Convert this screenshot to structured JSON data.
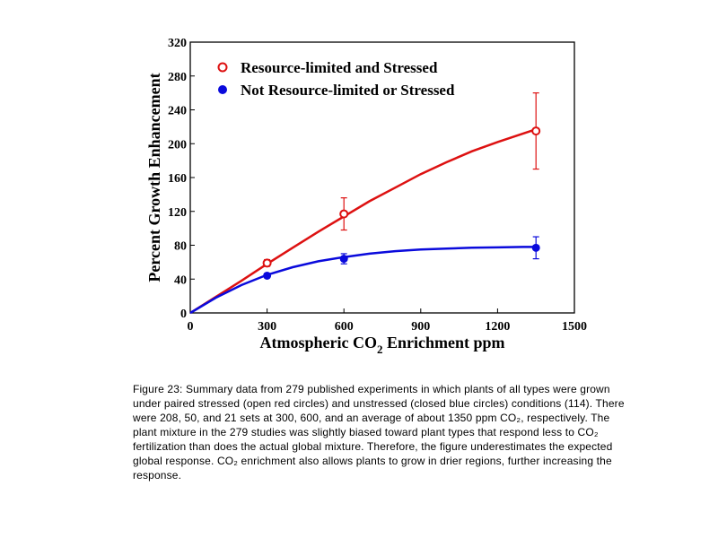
{
  "chart_data": {
    "type": "scatter",
    "xlabel_main": "Atmospheric CO",
    "xlabel_sub": "2",
    "xlabel_rest": " Enrichment ppm",
    "ylabel": "Percent Growth Enhancement",
    "xlim": [
      0,
      1500
    ],
    "ylim": [
      0,
      320
    ],
    "x_ticks": [
      0,
      300,
      600,
      900,
      1200,
      1500
    ],
    "y_ticks": [
      0,
      40,
      80,
      120,
      160,
      200,
      240,
      280,
      320
    ],
    "grid": false,
    "legend_position": "top-left",
    "series": [
      {
        "name": "Resource-limited and Stressed",
        "color": "#dd1111",
        "marker": "open-circle",
        "points": [
          {
            "x": 300,
            "y": 59,
            "err": 4
          },
          {
            "x": 600,
            "y": 117,
            "err": 19
          },
          {
            "x": 1350,
            "y": 215,
            "err": 45
          }
        ],
        "curve": [
          [
            0,
            0
          ],
          [
            100,
            19
          ],
          [
            200,
            38
          ],
          [
            300,
            58
          ],
          [
            400,
            77
          ],
          [
            500,
            96
          ],
          [
            600,
            114
          ],
          [
            700,
            132
          ],
          [
            800,
            148
          ],
          [
            900,
            164
          ],
          [
            1000,
            178
          ],
          [
            1100,
            191
          ],
          [
            1200,
            202
          ],
          [
            1300,
            212
          ],
          [
            1350,
            217
          ]
        ]
      },
      {
        "name": "Not Resource-limited or Stressed",
        "color": "#0a0adc",
        "marker": "filled-circle",
        "points": [
          {
            "x": 300,
            "y": 44,
            "err": 0
          },
          {
            "x": 600,
            "y": 64,
            "err": 6
          },
          {
            "x": 1350,
            "y": 77,
            "err": 13
          }
        ],
        "curve": [
          [
            0,
            0
          ],
          [
            100,
            18
          ],
          [
            200,
            33
          ],
          [
            300,
            45
          ],
          [
            400,
            54
          ],
          [
            500,
            61
          ],
          [
            600,
            66
          ],
          [
            700,
            70
          ],
          [
            800,
            73
          ],
          [
            900,
            75
          ],
          [
            1000,
            76
          ],
          [
            1100,
            77
          ],
          [
            1200,
            77.5
          ],
          [
            1300,
            78
          ],
          [
            1350,
            78
          ]
        ]
      }
    ]
  },
  "caption": "Figure 23: Summary data from 279 published experiments in which plants of all types were grown under paired stressed (open red circles) and unstressed (closed blue circles) conditions (114). There were 208, 50, and 21 sets at 300, 600, and an average of about 1350 ppm CO₂, respectively. The plant mixture in the 279 studies was slightly biased toward plant types that respond less to CO₂ fertilization than does the actual global mixture. Therefore, the figure underestimates the expected global response. CO₂ enrichment also allows plants to grow in drier regions, further increasing the response."
}
